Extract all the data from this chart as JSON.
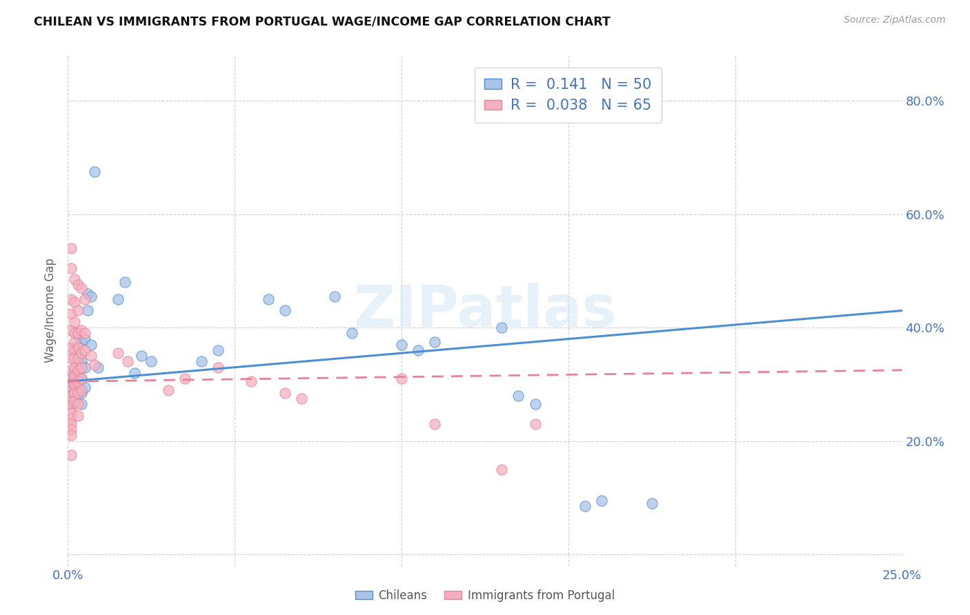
{
  "title": "CHILEAN VS IMMIGRANTS FROM PORTUGAL WAGE/INCOME GAP CORRELATION CHART",
  "source": "Source: ZipAtlas.com",
  "ylabel": "Wage/Income Gap",
  "xlim": [
    0.0,
    0.25
  ],
  "ylim": [
    -0.02,
    0.88
  ],
  "yticks": [
    0.0,
    0.2,
    0.4,
    0.6,
    0.8
  ],
  "right_yticklabels": [
    "",
    "20.0%",
    "40.0%",
    "60.0%",
    "80.0%"
  ],
  "xticks": [
    0.0,
    0.05,
    0.1,
    0.15,
    0.2,
    0.25
  ],
  "xticklabels": [
    "0.0%",
    "",
    "",
    "",
    "",
    "25.0%"
  ],
  "chilean_color": "#aac4e8",
  "portugal_color": "#f4b0c0",
  "chilean_line_color": "#4a8fd4",
  "portugal_line_color": "#e88098",
  "chilean_R": 0.141,
  "chilean_N": 50,
  "portugal_R": 0.038,
  "portugal_N": 65,
  "watermark": "ZIPatlas",
  "background_color": "#ffffff",
  "grid_color": "#cccccc",
  "chilean_scatter": [
    [
      0.001,
      0.305
    ],
    [
      0.001,
      0.295
    ],
    [
      0.001,
      0.285
    ],
    [
      0.001,
      0.275
    ],
    [
      0.001,
      0.265
    ],
    [
      0.001,
      0.315
    ],
    [
      0.002,
      0.325
    ],
    [
      0.002,
      0.31
    ],
    [
      0.002,
      0.295
    ],
    [
      0.002,
      0.28
    ],
    [
      0.003,
      0.385
    ],
    [
      0.003,
      0.355
    ],
    [
      0.003,
      0.335
    ],
    [
      0.003,
      0.315
    ],
    [
      0.003,
      0.3
    ],
    [
      0.003,
      0.285
    ],
    [
      0.004,
      0.375
    ],
    [
      0.004,
      0.34
    ],
    [
      0.004,
      0.31
    ],
    [
      0.004,
      0.285
    ],
    [
      0.004,
      0.265
    ],
    [
      0.005,
      0.38
    ],
    [
      0.005,
      0.33
    ],
    [
      0.005,
      0.295
    ],
    [
      0.006,
      0.46
    ],
    [
      0.006,
      0.43
    ],
    [
      0.007,
      0.455
    ],
    [
      0.007,
      0.37
    ],
    [
      0.008,
      0.675
    ],
    [
      0.009,
      0.33
    ],
    [
      0.015,
      0.45
    ],
    [
      0.017,
      0.48
    ],
    [
      0.02,
      0.32
    ],
    [
      0.022,
      0.35
    ],
    [
      0.025,
      0.34
    ],
    [
      0.04,
      0.34
    ],
    [
      0.045,
      0.36
    ],
    [
      0.06,
      0.45
    ],
    [
      0.065,
      0.43
    ],
    [
      0.08,
      0.455
    ],
    [
      0.085,
      0.39
    ],
    [
      0.1,
      0.37
    ],
    [
      0.105,
      0.36
    ],
    [
      0.11,
      0.375
    ],
    [
      0.13,
      0.4
    ],
    [
      0.135,
      0.28
    ],
    [
      0.14,
      0.265
    ],
    [
      0.155,
      0.085
    ],
    [
      0.16,
      0.095
    ],
    [
      0.175,
      0.09
    ]
  ],
  "portugal_scatter": [
    [
      0.001,
      0.54
    ],
    [
      0.001,
      0.505
    ],
    [
      0.001,
      0.45
    ],
    [
      0.001,
      0.425
    ],
    [
      0.001,
      0.395
    ],
    [
      0.001,
      0.365
    ],
    [
      0.001,
      0.345
    ],
    [
      0.001,
      0.325
    ],
    [
      0.001,
      0.31
    ],
    [
      0.001,
      0.3
    ],
    [
      0.001,
      0.29
    ],
    [
      0.001,
      0.28
    ],
    [
      0.001,
      0.27
    ],
    [
      0.001,
      0.26
    ],
    [
      0.001,
      0.25
    ],
    [
      0.001,
      0.24
    ],
    [
      0.001,
      0.23
    ],
    [
      0.001,
      0.22
    ],
    [
      0.001,
      0.21
    ],
    [
      0.001,
      0.175
    ],
    [
      0.002,
      0.485
    ],
    [
      0.002,
      0.445
    ],
    [
      0.002,
      0.41
    ],
    [
      0.002,
      0.39
    ],
    [
      0.002,
      0.375
    ],
    [
      0.002,
      0.36
    ],
    [
      0.002,
      0.345
    ],
    [
      0.002,
      0.33
    ],
    [
      0.002,
      0.315
    ],
    [
      0.002,
      0.3
    ],
    [
      0.002,
      0.285
    ],
    [
      0.002,
      0.27
    ],
    [
      0.003,
      0.475
    ],
    [
      0.003,
      0.43
    ],
    [
      0.003,
      0.39
    ],
    [
      0.003,
      0.365
    ],
    [
      0.003,
      0.345
    ],
    [
      0.003,
      0.325
    ],
    [
      0.003,
      0.305
    ],
    [
      0.003,
      0.285
    ],
    [
      0.003,
      0.265
    ],
    [
      0.003,
      0.245
    ],
    [
      0.004,
      0.47
    ],
    [
      0.004,
      0.395
    ],
    [
      0.004,
      0.355
    ],
    [
      0.004,
      0.33
    ],
    [
      0.004,
      0.31
    ],
    [
      0.004,
      0.29
    ],
    [
      0.005,
      0.45
    ],
    [
      0.005,
      0.39
    ],
    [
      0.005,
      0.36
    ],
    [
      0.007,
      0.35
    ],
    [
      0.008,
      0.335
    ],
    [
      0.015,
      0.355
    ],
    [
      0.018,
      0.34
    ],
    [
      0.03,
      0.29
    ],
    [
      0.035,
      0.31
    ],
    [
      0.045,
      0.33
    ],
    [
      0.055,
      0.305
    ],
    [
      0.065,
      0.285
    ],
    [
      0.07,
      0.275
    ],
    [
      0.1,
      0.31
    ],
    [
      0.11,
      0.23
    ],
    [
      0.13,
      0.15
    ],
    [
      0.14,
      0.23
    ]
  ]
}
